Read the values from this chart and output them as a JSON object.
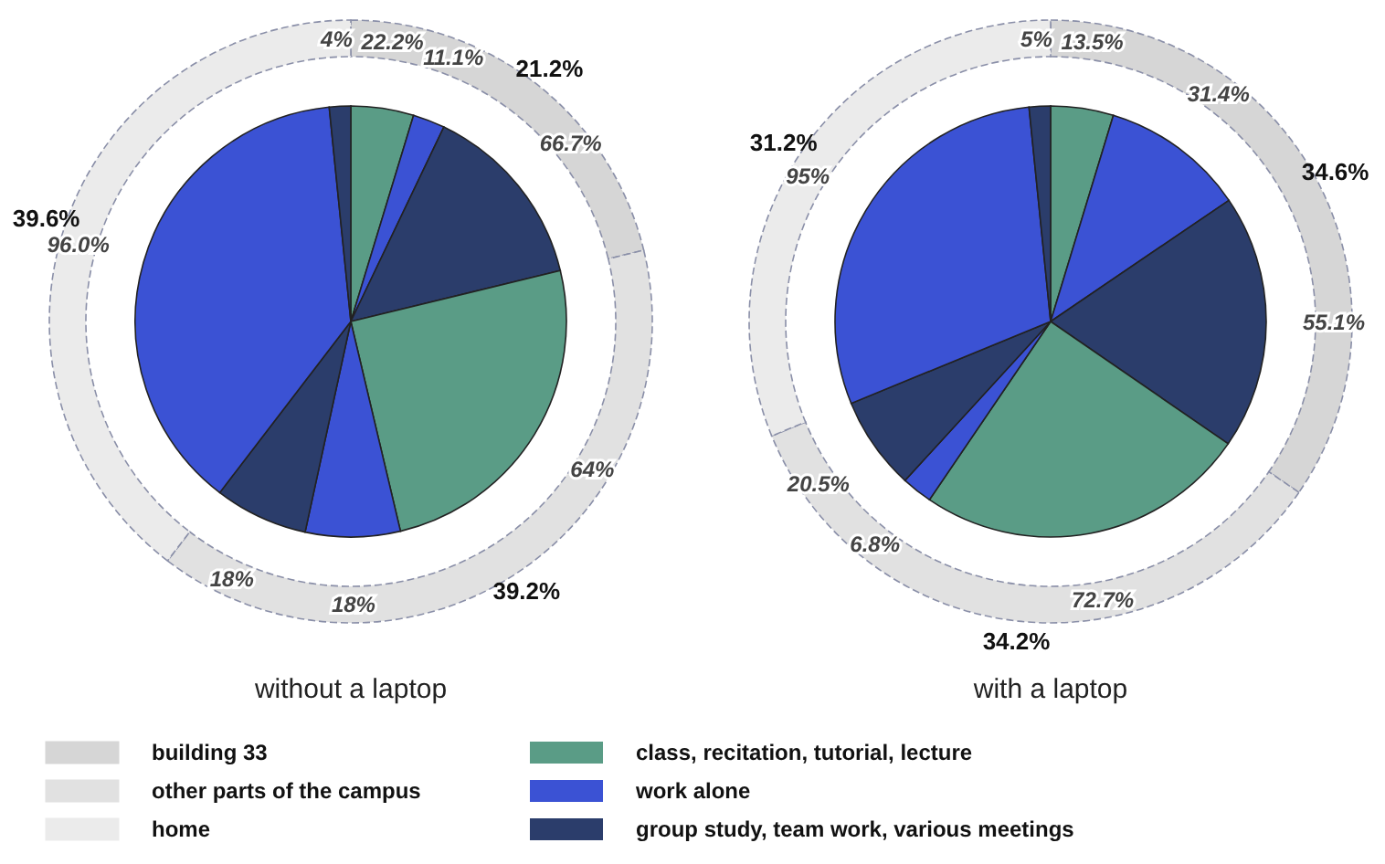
{
  "chart_data": [
    {
      "type": "donut",
      "categories": [
        "building 33",
        "other parts of the campus",
        "home"
      ],
      "values": [
        21.2,
        39.2,
        39.6
      ],
      "colors": [
        "#d6d6d6",
        "#e1e1e1",
        "#ebebeb"
      ],
      "value_labels": [
        "21.2%",
        "39.2%",
        "39.6%"
      ],
      "legend": "bottom"
    },
    {
      "type": "pie",
      "title": "without a laptop",
      "categories": [
        "class, recitation, tutorial, lecture",
        "work alone",
        "group study, team work, various meetings",
        null,
        null,
        null,
        null,
        null
      ],
      "values": [
        4.7,
        2.4,
        14.1,
        25.1,
        7.1,
        7.0,
        38.0,
        1.6
      ],
      "colors": [
        "#5a9c86",
        "#3b52d4",
        "#2b3d6b",
        "#5a9c86",
        "#3b52d4",
        "#2b3d6b",
        "#3b52d4",
        "#2b3d6b"
      ],
      "annotations": [
        "22.2%",
        "11.1%",
        "66.7%",
        "64%",
        "18%",
        "18%",
        "96.0%",
        "4%"
      ],
      "legend": "bottom"
    },
    {
      "type": "donut",
      "categories": [
        null,
        null,
        null
      ],
      "values": [
        34.6,
        34.2,
        31.2
      ],
      "colors": [
        "#d6d6d6",
        "#e1e1e1",
        "#ebebeb"
      ],
      "value_labels": [
        "34.6%",
        "34.2%",
        "31.2%"
      ]
    },
    {
      "type": "pie",
      "title": "with a laptop",
      "categories": [
        null,
        null,
        null,
        null,
        null,
        null,
        null,
        null
      ],
      "values": [
        4.7,
        10.8,
        19.1,
        24.9,
        2.3,
        7.0,
        29.6,
        1.6
      ],
      "colors": [
        "#5a9c86",
        "#3b52d4",
        "#2b3d6b",
        "#5a9c86",
        "#3b52d4",
        "#2b3d6b",
        "#3b52d4",
        "#2b3d6b"
      ],
      "annotations": [
        "13.5%",
        "31.4%",
        "55.1%",
        "72.7%",
        "6.8%",
        "20.5%",
        "95%",
        "5%"
      ]
    }
  ]
}
